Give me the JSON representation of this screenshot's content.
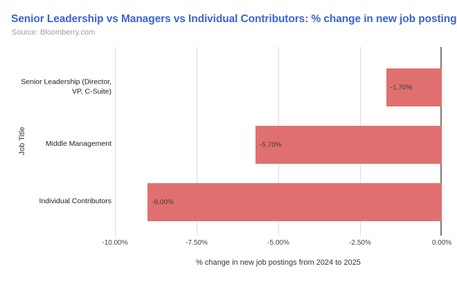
{
  "header": {
    "title": "Senior Leadership vs Managers vs Individual Contributors: % change in new job postings",
    "source": "Source: Bloomberry.com"
  },
  "colors": {
    "title_text": "#3A64D2",
    "source_text": "#9E9E9E",
    "bar_fill": "#E07070",
    "gridline": "#DCDCDC",
    "axis_line": "#7A7A7A"
  },
  "chart_data": {
    "type": "bar",
    "orientation": "horizontal",
    "title": "Senior Leadership vs Managers vs Individual Contributors: % change in new job postings",
    "subtitle": "Source: Bloomberry.com",
    "categories": [
      "Senior Leadership (Director, VP, C-Suite)",
      "Middle Management",
      "Individual Contributors"
    ],
    "categories_display": [
      "Senior Leadership (Director,\nVP, C-Suite)",
      "Middle Management",
      "Individual Contributors"
    ],
    "values": [
      -1.7,
      -5.7,
      -9.0
    ],
    "bar_labels": [
      "-1.70%",
      "-5.70%",
      "-9.00%"
    ],
    "xlabel": "% change in new job postings from 2024 to 2025",
    "ylabel": "Job Title",
    "xlim": [
      -10,
      0
    ],
    "x_ticks": [
      "-10.00%",
      "-7.50%",
      "-5.00%",
      "-2.50%",
      "0.00%"
    ],
    "grid": true,
    "legend": "none",
    "bar_color": "#E07070"
  }
}
